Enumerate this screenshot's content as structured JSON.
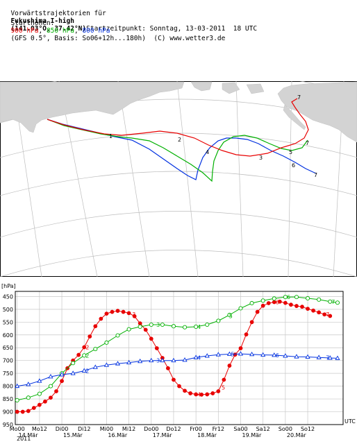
{
  "header": {
    "line1_a": "Vorwärtstrajektorien für",
    "line1_site": "Fukushima I-high",
    "line1_coords": "(141.03°O, 37.42°N)",
    "line1_start": "Startzeitpunkt: Sonntag, 13-03-2011  18 UTC",
    "line2_a": "Starthöhen:",
    "lvl_900": "900 hPa",
    "lvl_850": "850 hPa",
    "lvl_800": "800 hPa",
    "line2_b": "(GFS 0.5°, Basis: So06+12h...180h)  (C) www.wetter3.de"
  },
  "colors": {
    "900": "#e80000",
    "850": "#00b000",
    "800": "#0030e0",
    "land": "#d3d3d3",
    "grid": "#b8b8b8"
  },
  "chart_data": {
    "type": "line",
    "ylabel": "[hPa]",
    "ylim": [
      950,
      430
    ],
    "yticks": [
      450,
      500,
      550,
      600,
      650,
      700,
      750,
      800,
      850,
      900,
      950
    ],
    "xlim": [
      -1,
      175
    ],
    "x_unit": "UTC",
    "x_ticks": [
      {
        "h": 0,
        "label": "Mo00"
      },
      {
        "h": 12,
        "label": "Mo12"
      },
      {
        "h": 24,
        "label": "Di00"
      },
      {
        "h": 36,
        "label": "Di12"
      },
      {
        "h": 48,
        "label": "Mi00"
      },
      {
        "h": 60,
        "label": "Mi12"
      },
      {
        "h": 72,
        "label": "Do00"
      },
      {
        "h": 84,
        "label": "Do12"
      },
      {
        "h": 96,
        "label": "Fr00"
      },
      {
        "h": 108,
        "label": "Fr12"
      },
      {
        "h": 120,
        "label": "Sa00"
      },
      {
        "h": 132,
        "label": "Sa12"
      },
      {
        "h": 144,
        "label": "So00"
      },
      {
        "h": 156,
        "label": "So12"
      }
    ],
    "date_labels": [
      {
        "h": 0,
        "label": "14.Mär"
      },
      {
        "h": 24,
        "label": "15.Mär"
      },
      {
        "h": 48,
        "label": "16.Mär"
      },
      {
        "h": 72,
        "label": "17.Mär"
      },
      {
        "h": 96,
        "label": "18.Mär"
      },
      {
        "h": 120,
        "label": "19.Mär"
      },
      {
        "h": 144,
        "label": "20.Mär"
      }
    ],
    "year_label": "2011",
    "series": [
      {
        "name": "900 hPa",
        "color": "#e80000",
        "marker": "filled-circle",
        "day_markers": [
          {
            "h": 36,
            "label": "2"
          },
          {
            "h": 61,
            "label": "3"
          },
          {
            "h": 96,
            "label": "4"
          },
          {
            "h": 109,
            "label": "5"
          },
          {
            "h": 138,
            "label": "6"
          },
          {
            "h": 165,
            "label": "7"
          }
        ],
        "x": [
          0,
          3,
          6,
          9,
          12,
          15,
          18,
          21,
          24,
          27,
          30,
          33,
          36,
          39,
          42,
          45,
          48,
          51,
          54,
          57,
          60,
          63,
          66,
          69,
          72,
          75,
          78,
          81,
          84,
          87,
          90,
          93,
          96,
          99,
          102,
          105,
          108,
          111,
          114,
          117,
          120,
          123,
          126,
          129,
          132,
          135,
          138,
          141,
          144,
          147,
          150,
          153,
          156,
          159,
          162,
          165,
          168
        ],
        "y": [
          900,
          900,
          897,
          885,
          873,
          860,
          845,
          820,
          780,
          730,
          700,
          678,
          648,
          606,
          566,
          537,
          517,
          510,
          506,
          510,
          515,
          527,
          555,
          580,
          615,
          652,
          690,
          730,
          775,
          800,
          818,
          828,
          832,
          833,
          832,
          828,
          820,
          775,
          720,
          677,
          652,
          598,
          550,
          510,
          486,
          476,
          472,
          470,
          475,
          482,
          487,
          490,
          498,
          505,
          512,
          520,
          526
        ]
      },
      {
        "name": "850 hPa",
        "color": "#00b000",
        "marker": "open-circle",
        "day_markers": [
          {
            "h": 36,
            "label": "2"
          },
          {
            "h": 74,
            "label": "3"
          },
          {
            "h": 96,
            "label": "4"
          },
          {
            "h": 113,
            "label": "5"
          },
          {
            "h": 144,
            "label": "6"
          },
          {
            "h": 168,
            "label": "7"
          }
        ],
        "x": [
          0,
          6,
          12,
          18,
          24,
          30,
          36,
          42,
          48,
          54,
          60,
          66,
          72,
          78,
          84,
          90,
          96,
          102,
          108,
          114,
          120,
          126,
          132,
          138,
          144,
          150,
          156,
          162,
          168,
          172
        ],
        "y": [
          855,
          845,
          830,
          800,
          750,
          710,
          680,
          655,
          630,
          602,
          578,
          568,
          560,
          560,
          566,
          570,
          568,
          560,
          545,
          522,
          496,
          476,
          466,
          458,
          452,
          452,
          457,
          462,
          470,
          474
        ]
      },
      {
        "name": "800 hPa",
        "color": "#0030e0",
        "marker": "open-triangle",
        "day_markers": [
          {
            "h": 36,
            "label": "2"
          },
          {
            "h": 74,
            "label": "3"
          },
          {
            "h": 96,
            "label": "4"
          },
          {
            "h": 114,
            "label": "5"
          },
          {
            "h": 138,
            "label": "6"
          },
          {
            "h": 165,
            "label": "7"
          }
        ],
        "x": [
          0,
          6,
          12,
          18,
          24,
          30,
          36,
          42,
          48,
          54,
          60,
          66,
          72,
          78,
          84,
          90,
          96,
          102,
          108,
          114,
          120,
          126,
          132,
          138,
          144,
          150,
          156,
          162,
          168,
          172
        ],
        "y": [
          800,
          793,
          780,
          763,
          755,
          750,
          740,
          726,
          718,
          712,
          708,
          703,
          700,
          700,
          700,
          698,
          688,
          682,
          677,
          675,
          674,
          676,
          678,
          679,
          682,
          685,
          686,
          688,
          690,
          691
        ]
      }
    ]
  }
}
